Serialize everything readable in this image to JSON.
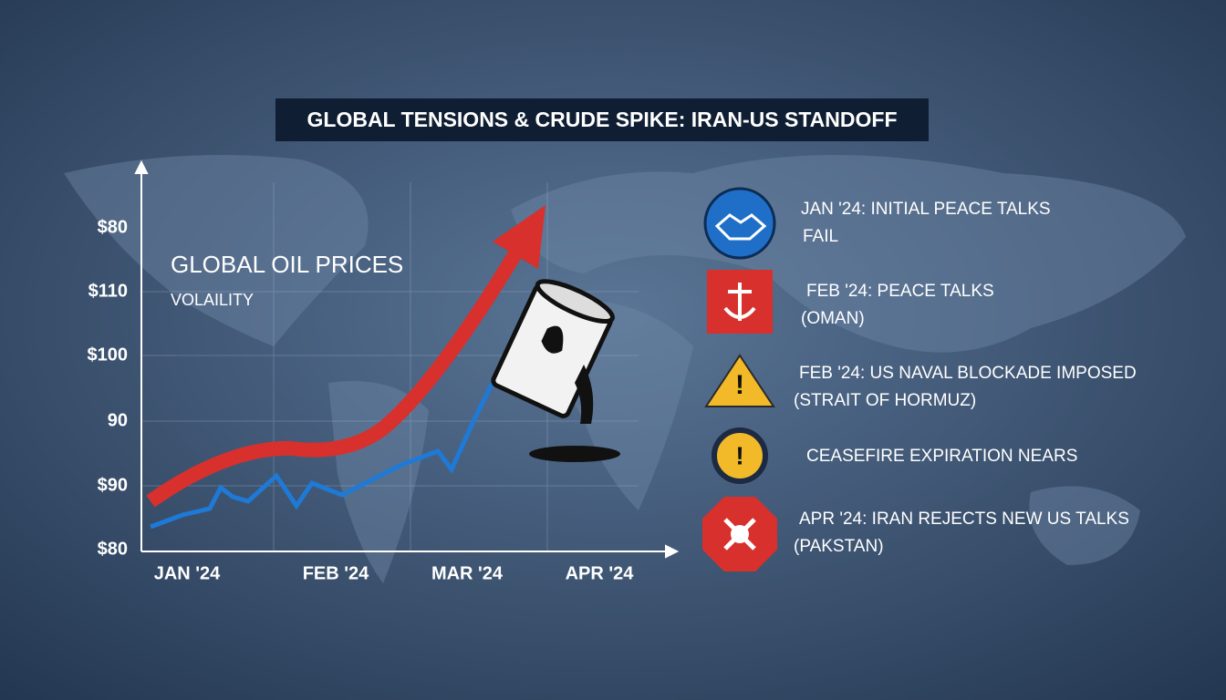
{
  "title": "GLOBAL TENSIONS & CRUDE SPIKE: IRAN-US STANDOFF",
  "chart": {
    "heading": "GLOBAL OIL PRICES",
    "subheading": "VOLAILITY",
    "y_labels": [
      "$80",
      "$110",
      "$100",
      "90",
      "$90",
      "$80"
    ],
    "x_labels": [
      "JAN '24",
      "FEB '24",
      "MAR '24",
      "APR '24"
    ]
  },
  "events": [
    {
      "lines": [
        "JAN '24: INITIAL PEACE TALKS",
        "FAIL"
      ]
    },
    {
      "lines": [
        "FEB '24: PEACE TALKS",
        "(OMAN)"
      ]
    },
    {
      "lines": [
        "FEB '24: US NAVAL BLOCKADE IMPOSED",
        "(STRAIT OF HORMUZ)"
      ]
    },
    {
      "lines": [
        "CEASEFIRE EXPIRATION NEARS"
      ]
    },
    {
      "lines": [
        "APR '24: IRAN REJECTS NEW US TALKS",
        "(PAKSTAN)"
      ]
    }
  ]
}
